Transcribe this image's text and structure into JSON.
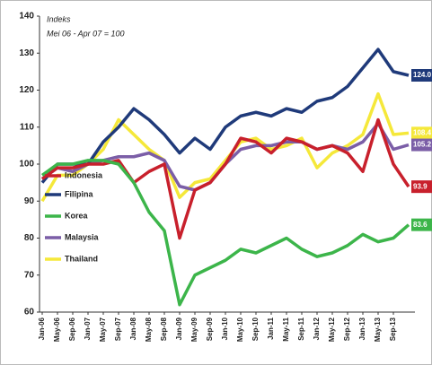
{
  "chart_data": {
    "type": "line",
    "annotations": [
      "Indeks",
      "Mei 06 - Apr 07 = 100"
    ],
    "categories": [
      "Jan-06",
      "May-06",
      "Sep-06",
      "Jan-07",
      "May-07",
      "Sep-07",
      "Jan-08",
      "May-08",
      "Sep-08",
      "Jan-09",
      "May-09",
      "Sep-09",
      "Jan-10",
      "May-10",
      "Sep-10",
      "Jan-11",
      "May-11",
      "Sep-11",
      "Jan-12",
      "May-12",
      "Sep-12",
      "Jan-13",
      "May-13",
      "Sep-13",
      null
    ],
    "ylim": [
      60,
      140
    ],
    "yticks": [
      60,
      70,
      80,
      90,
      100,
      110,
      120,
      130,
      140
    ],
    "legend": "left",
    "series": [
      {
        "name": "Indonesia",
        "color": "#c8202c",
        "values": [
          96,
          99,
          99,
          100,
          100,
          101,
          95,
          98,
          100,
          80,
          93,
          95,
          100,
          107,
          106,
          103,
          107,
          106,
          104,
          105,
          103,
          98,
          112,
          100,
          93.9
        ],
        "value_labels": [
          null,
          null,
          null,
          null,
          null,
          null,
          null,
          null,
          null,
          null,
          null,
          null,
          null,
          null,
          null,
          null,
          null,
          null,
          null,
          null,
          null,
          null,
          null,
          null,
          "93.9"
        ]
      },
      {
        "name": "Filipina",
        "color": "#1f3a7a",
        "values": [
          95,
          100,
          100,
          100,
          106,
          110,
          115,
          112,
          108,
          103,
          107,
          104,
          110,
          113,
          114,
          113,
          115,
          114,
          117,
          118,
          121,
          126,
          131,
          125,
          124
        ],
        "value_labels": [
          null,
          null,
          null,
          null,
          null,
          null,
          null,
          null,
          null,
          null,
          null,
          null,
          null,
          null,
          null,
          null,
          null,
          null,
          null,
          null,
          null,
          null,
          null,
          null,
          "124.0"
        ]
      },
      {
        "name": "Korea",
        "color": "#3cb54a",
        "values": [
          97,
          100,
          100,
          101,
          101,
          100,
          95,
          87,
          82,
          62,
          70,
          72,
          74,
          77,
          76,
          78,
          80,
          77,
          75,
          76,
          78,
          81,
          79,
          80,
          83.6
        ],
        "value_labels": [
          null,
          null,
          null,
          null,
          null,
          null,
          null,
          null,
          null,
          null,
          null,
          null,
          null,
          null,
          null,
          null,
          null,
          null,
          null,
          null,
          null,
          null,
          null,
          null,
          "83.6"
        ]
      },
      {
        "name": "Malaysia",
        "color": "#7b5ea7",
        "values": [
          96,
          99,
          98,
          100,
          101,
          102,
          102,
          103,
          101,
          94,
          93,
          95,
          100,
          104,
          105,
          105,
          106,
          106,
          104,
          105,
          104,
          106,
          111,
          104,
          105.2
        ],
        "value_labels": [
          null,
          null,
          null,
          null,
          null,
          null,
          null,
          null,
          null,
          null,
          null,
          null,
          null,
          null,
          null,
          null,
          null,
          null,
          null,
          null,
          null,
          null,
          null,
          null,
          "105.2"
        ]
      },
      {
        "name": "Thailand",
        "color": "#f5e83a",
        "values": [
          90,
          97,
          97,
          100,
          104,
          112,
          108,
          104,
          101,
          91,
          95,
          96,
          101,
          106,
          107,
          104,
          105,
          107,
          99,
          103,
          105,
          108,
          119,
          108,
          108.4
        ],
        "value_labels": [
          null,
          null,
          null,
          null,
          null,
          null,
          null,
          null,
          null,
          null,
          null,
          null,
          null,
          null,
          null,
          null,
          null,
          null,
          null,
          null,
          null,
          null,
          null,
          null,
          "108.4"
        ]
      }
    ]
  }
}
